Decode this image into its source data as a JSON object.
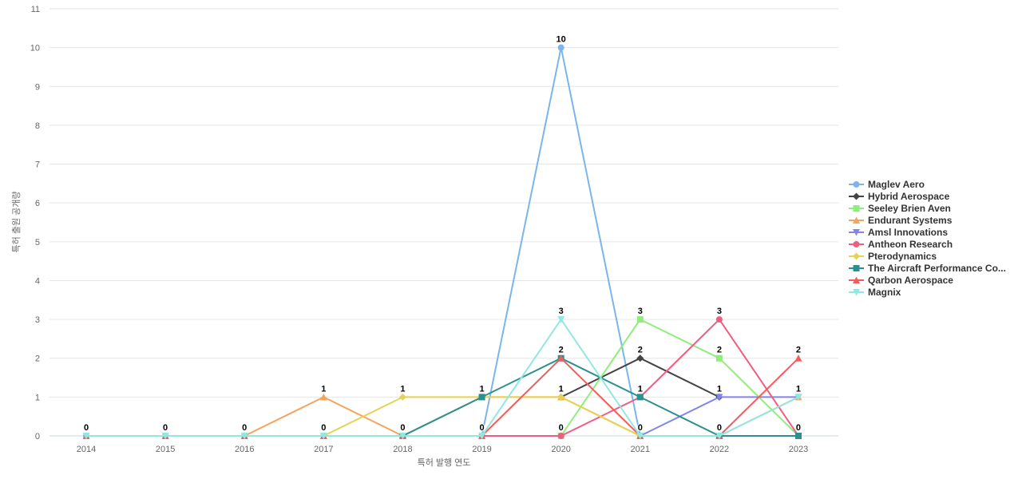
{
  "chart_data": {
    "type": "line",
    "title": "",
    "x_categories": [
      "2014",
      "2015",
      "2016",
      "2017",
      "2018",
      "2019",
      "2020",
      "2021",
      "2022",
      "2023"
    ],
    "xlabel": "특허 발행 연도",
    "ylabel": "특허 출원 공개량",
    "ylim": [
      0,
      11
    ],
    "y_tick_interval": 1,
    "grid": true,
    "legend_position": "right",
    "colors": {
      "grid": "#e6e6e6",
      "axis_line": "#ccd6eb",
      "axis_text": "#666666",
      "data_label": "#000000",
      "legend_text": "#333333"
    },
    "series": [
      {
        "name": "Maglev Aero",
        "color": "#7cb5ec",
        "marker": "circle",
        "values": [
          0,
          0,
          0,
          0,
          0,
          0,
          10,
          0,
          0,
          0
        ]
      },
      {
        "name": "Hybrid Aerospace",
        "color": "#434348",
        "marker": "diamond",
        "values": [
          null,
          null,
          null,
          null,
          null,
          null,
          1,
          2,
          1,
          null
        ]
      },
      {
        "name": "Seeley Brien Aven",
        "color": "#90ed7d",
        "marker": "square",
        "values": [
          null,
          null,
          null,
          null,
          null,
          null,
          0,
          3,
          2,
          0
        ]
      },
      {
        "name": "Endurant Systems",
        "color": "#f7a35c",
        "marker": "triangle",
        "values": [
          null,
          null,
          0,
          1,
          0,
          1,
          1,
          0,
          0,
          1
        ]
      },
      {
        "name": "Amsl Innovations",
        "color": "#8085e9",
        "marker": "triangle-down",
        "values": [
          null,
          null,
          null,
          null,
          null,
          null,
          null,
          0,
          1,
          1
        ]
      },
      {
        "name": "Antheon Research",
        "color": "#f15c80",
        "marker": "circle",
        "values": [
          null,
          null,
          null,
          null,
          null,
          0,
          0,
          1,
          3,
          0
        ]
      },
      {
        "name": "Pterodynamics",
        "color": "#e4d354",
        "marker": "diamond",
        "values": [
          null,
          null,
          null,
          0,
          1,
          1,
          1,
          0,
          0,
          0
        ]
      },
      {
        "name": "The Aircraft Performance Co...",
        "color": "#2b908f",
        "marker": "square",
        "values": [
          null,
          null,
          null,
          null,
          0,
          1,
          2,
          1,
          0,
          0
        ]
      },
      {
        "name": "Qarbon Aerospace",
        "color": "#f45b5b",
        "marker": "triangle",
        "values": [
          0,
          0,
          0,
          0,
          0,
          0,
          2,
          0,
          0,
          2
        ]
      },
      {
        "name": "Magnix",
        "color": "#91e8e1",
        "marker": "triangle-down",
        "values": [
          0,
          0,
          0,
          0,
          0,
          0,
          3,
          0,
          0,
          1
        ]
      }
    ]
  }
}
